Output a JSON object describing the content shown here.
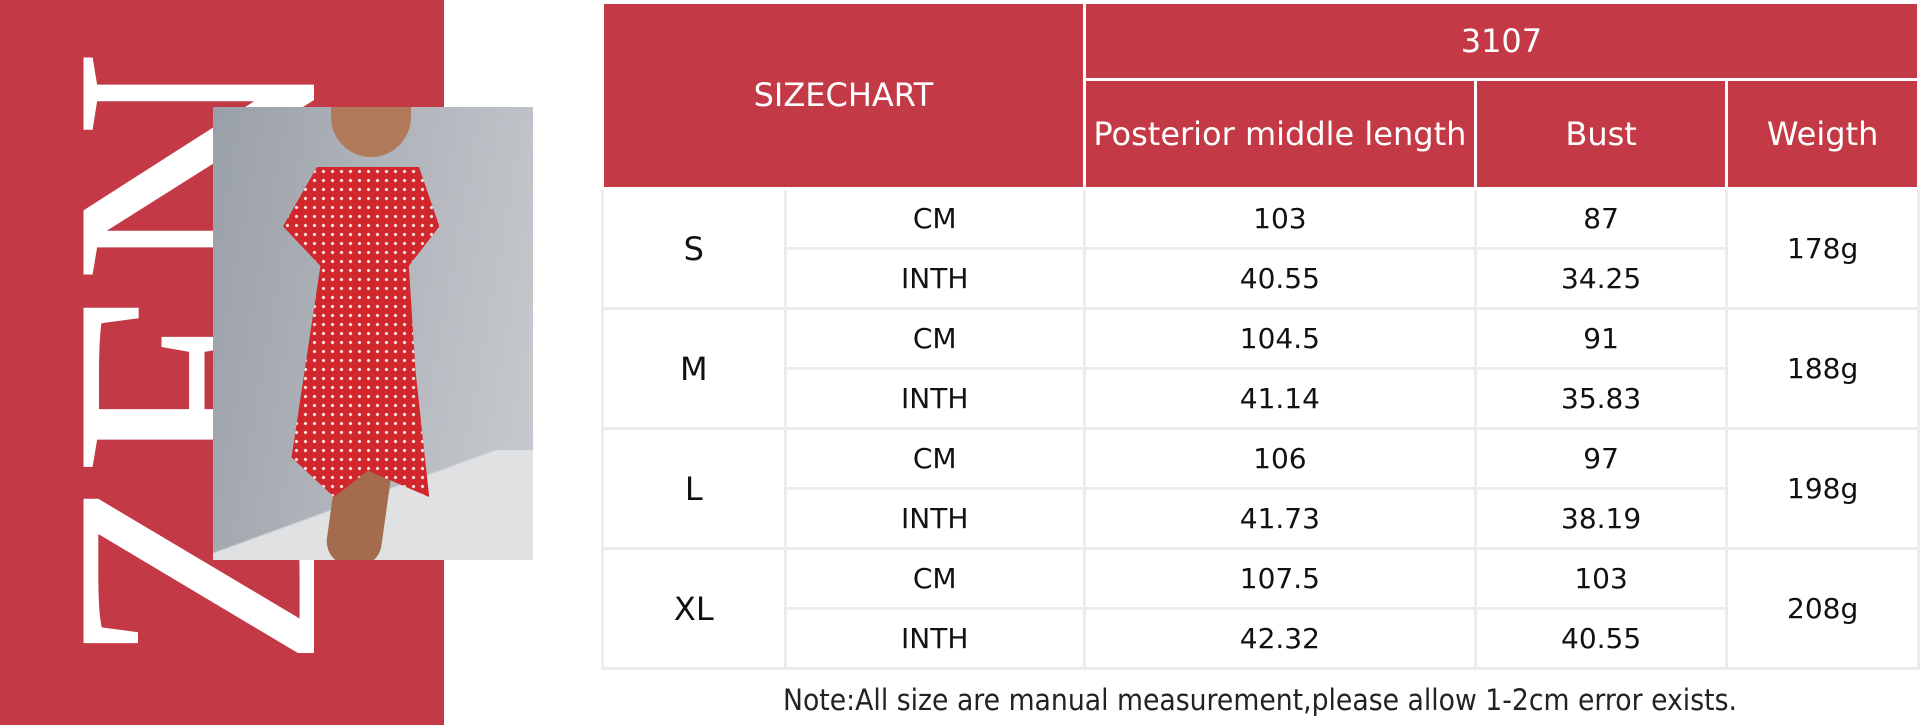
{
  "brand": {
    "logo_text": "ZEN",
    "color": "#c33a46"
  },
  "photo": {
    "subject": "red floral cold-shoulder wrap midi dress"
  },
  "table": {
    "title": "SIZECHART",
    "style_code": "3107",
    "columns": [
      "Posterior middle length",
      "Bust",
      "Weigth"
    ],
    "rows": [
      {
        "size": "S",
        "cm_label": "CM",
        "inch_label": "INTH",
        "length_cm": "103",
        "bust_cm": "87",
        "length_in": "40.55",
        "bust_in": "34.25",
        "weight": "178g"
      },
      {
        "size": "M",
        "cm_label": "CM",
        "inch_label": "INTH",
        "length_cm": "104.5",
        "bust_cm": "91",
        "length_in": "41.14",
        "bust_in": "35.83",
        "weight": "188g"
      },
      {
        "size": "L",
        "cm_label": "CM",
        "inch_label": "INTH",
        "length_cm": "106",
        "bust_cm": "97",
        "length_in": "41.73",
        "bust_in": "38.19",
        "weight": "198g"
      },
      {
        "size": "XL",
        "cm_label": "CM",
        "inch_label": "INTH",
        "length_cm": "107.5",
        "bust_cm": "103",
        "length_in": "42.32",
        "bust_in": "40.55",
        "weight": "208g"
      }
    ]
  },
  "note": "Note:All size are manual measurement,please allow 1-2cm error exists."
}
